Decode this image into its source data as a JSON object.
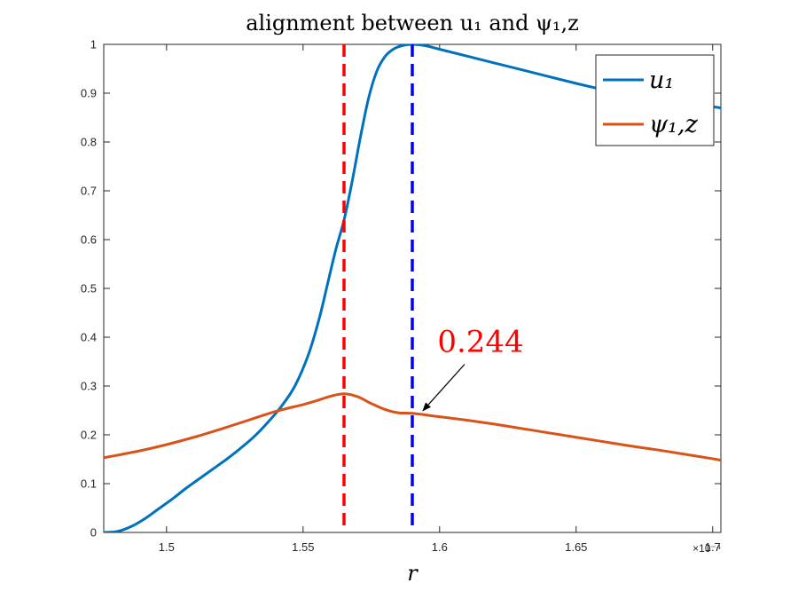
{
  "chart_data": {
    "type": "line",
    "title": "alignment between u₁ and ψ₁,z",
    "xlabel": "r",
    "x_exponent_label": "×10⁻⁴",
    "xlim": [
      1.477,
      1.703
    ],
    "ylim": [
      0,
      1
    ],
    "x_ticks": [
      1.5,
      1.55,
      1.6,
      1.65,
      1.7
    ],
    "x_tick_labels": [
      "1.5",
      "1.55",
      "1.6",
      "1.65",
      "1.7"
    ],
    "y_ticks": [
      0,
      0.1,
      0.2,
      0.3,
      0.4,
      0.5,
      0.6,
      0.7,
      0.8,
      0.9,
      1
    ],
    "y_tick_labels": [
      "0",
      "0.1",
      "0.2",
      "0.3",
      "0.4",
      "0.5",
      "0.6",
      "0.7",
      "0.8",
      "0.9",
      "1"
    ],
    "grid": false,
    "legend_position": "top-right",
    "series": [
      {
        "name": "u₁",
        "color": "#0072BD",
        "x": [
          1.477,
          1.482,
          1.487,
          1.492,
          1.497,
          1.502,
          1.507,
          1.512,
          1.517,
          1.522,
          1.527,
          1.532,
          1.537,
          1.542,
          1.547,
          1.552,
          1.556,
          1.559,
          1.562,
          1.565,
          1.568,
          1.571,
          1.574,
          1.577,
          1.58,
          1.583,
          1.586,
          1.59,
          1.595,
          1.6,
          1.61,
          1.62,
          1.63,
          1.64,
          1.65,
          1.66,
          1.67,
          1.68,
          1.69,
          1.7,
          1.703
        ],
        "y": [
          0.0,
          0.002,
          0.012,
          0.028,
          0.048,
          0.068,
          0.09,
          0.11,
          0.13,
          0.15,
          0.172,
          0.196,
          0.225,
          0.258,
          0.3,
          0.365,
          0.44,
          0.51,
          0.58,
          0.64,
          0.72,
          0.81,
          0.89,
          0.945,
          0.975,
          0.99,
          0.997,
          1.0,
          0.997,
          0.99,
          0.976,
          0.962,
          0.948,
          0.934,
          0.92,
          0.907,
          0.895,
          0.885,
          0.878,
          0.872,
          0.87
        ]
      },
      {
        "name": "ψ₁,z",
        "color": "#D95319",
        "x": [
          1.477,
          1.49,
          1.5,
          1.51,
          1.52,
          1.53,
          1.54,
          1.55,
          1.555,
          1.56,
          1.565,
          1.57,
          1.575,
          1.58,
          1.585,
          1.59,
          1.6,
          1.61,
          1.62,
          1.63,
          1.64,
          1.65,
          1.66,
          1.67,
          1.68,
          1.69,
          1.7,
          1.703
        ],
        "y": [
          0.153,
          0.167,
          0.18,
          0.195,
          0.212,
          0.23,
          0.248,
          0.262,
          0.27,
          0.279,
          0.284,
          0.278,
          0.264,
          0.252,
          0.245,
          0.244,
          0.237,
          0.23,
          0.222,
          0.213,
          0.204,
          0.195,
          0.186,
          0.177,
          0.169,
          0.16,
          0.151,
          0.148
        ]
      }
    ],
    "vlines": [
      {
        "x": 1.565,
        "color": "#FF0000",
        "style": "dashed"
      },
      {
        "x": 1.59,
        "color": "#0000FF",
        "style": "dashed"
      }
    ],
    "annotation": {
      "text": "0.244",
      "color": "#FF0000",
      "point": {
        "x": 1.59,
        "y": 0.244
      },
      "label_at": {
        "x": 1.615,
        "y": 0.37
      }
    }
  }
}
